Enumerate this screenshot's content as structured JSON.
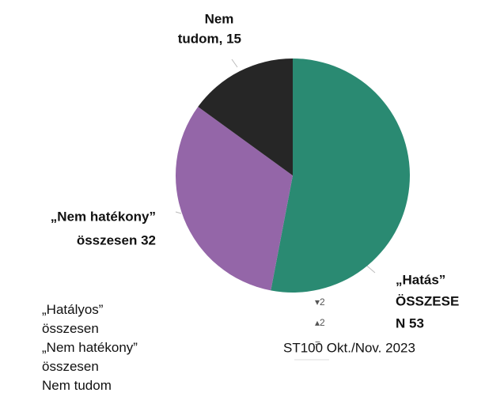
{
  "chart_data": {
    "type": "pie",
    "categories": [
      "„Hatályos” összesen",
      "„Nem hatékony” összesen",
      "Nem tudom"
    ],
    "values": [
      53,
      32,
      15
    ],
    "value_labels": [
      [
        "„Hatás”",
        "ÖSSZESE",
        "N 53"
      ],
      [
        "„Nem hatékony”",
        "összesen 32"
      ],
      [
        "Nem",
        "tudom, 15"
      ]
    ],
    "colors": [
      "#2a8a72",
      "#9466a8",
      "#262626"
    ],
    "legend_markers": [
      "▾2",
      "▴2",
      "="
    ],
    "source": "ST100 Okt./Nov. 2023"
  }
}
